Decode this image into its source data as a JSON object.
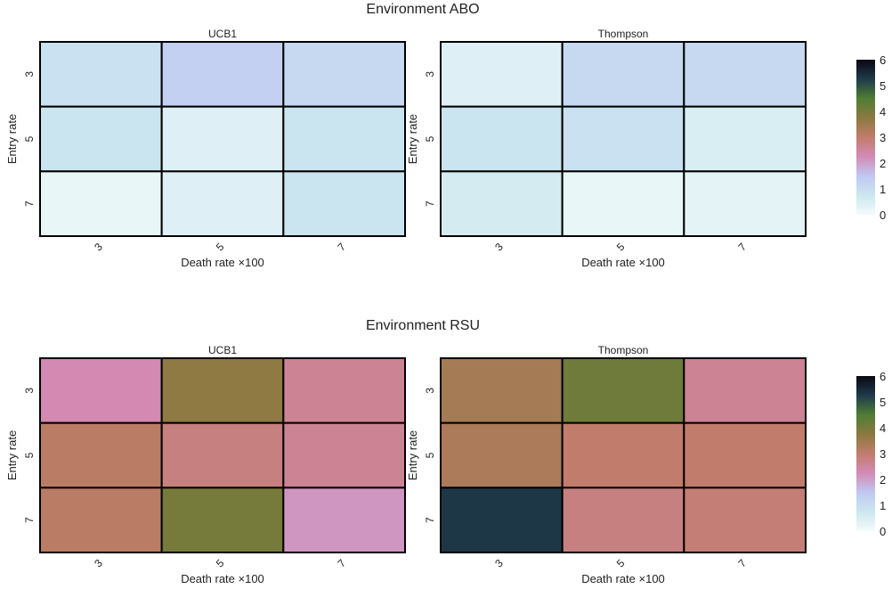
{
  "chart_data": [
    {
      "type": "heatmap",
      "group_title": "Environment ABO",
      "title": "UCB1",
      "xlabel": "Death rate ×100",
      "ylabel": "Entry rate",
      "x_categories": [
        "3",
        "5",
        "7"
      ],
      "y_categories": [
        "3",
        "5",
        "7"
      ],
      "values": [
        [
          0.9,
          1.3,
          1.1
        ],
        [
          0.8,
          0.4,
          0.8
        ],
        [
          0.2,
          0.4,
          0.8
        ]
      ],
      "colorbar": {
        "range": [
          0,
          6
        ],
        "ticks": [
          "0",
          "1",
          "2",
          "3",
          "4",
          "5",
          "6"
        ]
      }
    },
    {
      "type": "heatmap",
      "group_title": "Environment ABO",
      "title": "Thompson",
      "xlabel": "Death rate ×100",
      "ylabel": "Entry rate",
      "x_categories": [
        "3",
        "5",
        "7"
      ],
      "y_categories": [
        "3",
        "5",
        "7"
      ],
      "values": [
        [
          0.4,
          1.1,
          1.1
        ],
        [
          0.8,
          0.9,
          0.5
        ],
        [
          0.6,
          0.2,
          0.3
        ]
      ]
    },
    {
      "type": "heatmap",
      "group_title": "Environment RSU",
      "title": "UCB1",
      "xlabel": "Death rate ×100",
      "ylabel": "Entry rate",
      "x_categories": [
        "3",
        "5",
        "7"
      ],
      "y_categories": [
        "3",
        "5",
        "7"
      ],
      "values": [
        [
          2.3,
          3.7,
          2.6
        ],
        [
          3.1,
          2.8,
          2.6
        ],
        [
          3.1,
          4.0,
          2.1
        ]
      ],
      "colorbar": {
        "range": [
          0,
          6
        ],
        "ticks": [
          "0",
          "1",
          "2",
          "3",
          "4",
          "5",
          "6"
        ]
      }
    },
    {
      "type": "heatmap",
      "group_title": "Environment RSU",
      "title": "Thompson",
      "xlabel": "Death rate ×100",
      "ylabel": "Entry rate",
      "x_categories": [
        "3",
        "5",
        "7"
      ],
      "y_categories": [
        "3",
        "5",
        "7"
      ],
      "values": [
        [
          3.4,
          4.1,
          2.6
        ],
        [
          3.3,
          3.0,
          3.0
        ],
        [
          5.3,
          2.8,
          2.9
        ]
      ]
    }
  ],
  "colormap": "cubehelix_r",
  "colormap_stops": [
    "#f4fbfb",
    "#cbe7ef",
    "#c0c8f2",
    "#d48ab6",
    "#c27c6c",
    "#8a7a3f",
    "#4f7d34",
    "#1f3a4a",
    "#0b0713"
  ]
}
